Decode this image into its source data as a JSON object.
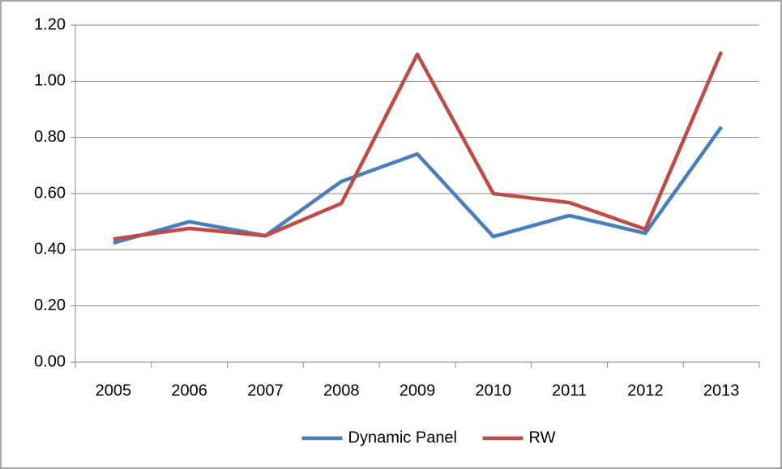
{
  "chart_data": {
    "type": "line",
    "categories": [
      "2005",
      "2006",
      "2007",
      "2008",
      "2009",
      "2010",
      "2011",
      "2012",
      "2013"
    ],
    "series": [
      {
        "name": "Dynamic Panel",
        "color": "#4a7ebb",
        "values": [
          0.424,
          0.5,
          0.45,
          0.643,
          0.741,
          0.447,
          0.522,
          0.459,
          0.837
        ]
      },
      {
        "name": "RW",
        "color": "#be4b48",
        "values": [
          0.438,
          0.476,
          0.45,
          0.565,
          1.096,
          0.6,
          0.568,
          0.473,
          1.105
        ]
      }
    ],
    "ylim": [
      0,
      1.2
    ],
    "yticks": [
      {
        "value": 0,
        "label": "0.00"
      },
      {
        "value": 0.2,
        "label": "0.20"
      },
      {
        "value": 0.4,
        "label": "0.40"
      },
      {
        "value": 0.6,
        "label": "0.60"
      },
      {
        "value": 0.8,
        "label": "0.80"
      },
      {
        "value": 1.0,
        "label": "1.00"
      },
      {
        "value": 1.2,
        "label": "1.20"
      }
    ],
    "grid": true,
    "legend": "bottom"
  }
}
